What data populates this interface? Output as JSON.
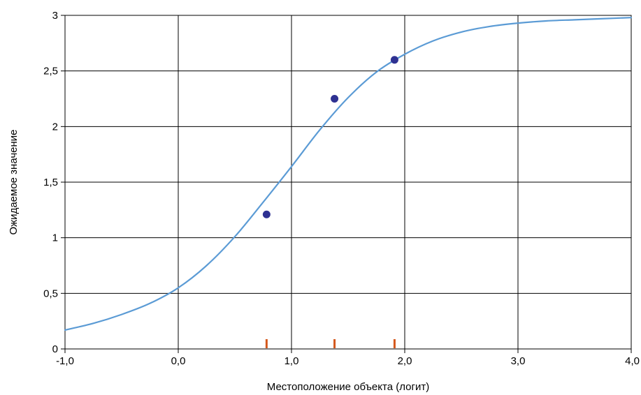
{
  "chart_data": {
    "type": "line",
    "xlabel": "Местоположение объекта (логит)",
    "ylabel": "Ожидаемое значение",
    "xlim": [
      -1.0,
      4.0
    ],
    "ylim": [
      0,
      3
    ],
    "xticks": [
      -1.0,
      0.0,
      1.0,
      2.0,
      3.0,
      4.0
    ],
    "xtick_labels": [
      "-1,0",
      "0,0",
      "1,0",
      "2,0",
      "3,0",
      "4,0"
    ],
    "yticks": [
      0,
      0.5,
      1,
      1.5,
      2,
      2.5,
      3
    ],
    "ytick_labels": [
      "0",
      "0,5",
      "1",
      "1,5",
      "2",
      "2,5",
      "3"
    ],
    "grid": true,
    "series": [
      {
        "kind": "curve",
        "color": "#5b9bd5",
        "x": [
          -1.0,
          -0.75,
          -0.5,
          -0.25,
          0.0,
          0.25,
          0.5,
          0.75,
          1.0,
          1.25,
          1.5,
          1.75,
          2.0,
          2.25,
          2.5,
          2.75,
          3.0,
          3.25,
          3.5,
          3.75,
          4.0
        ],
        "y": [
          0.17,
          0.23,
          0.31,
          0.41,
          0.55,
          0.75,
          1.01,
          1.32,
          1.64,
          1.97,
          2.26,
          2.49,
          2.65,
          2.77,
          2.85,
          2.9,
          2.93,
          2.95,
          2.96,
          2.97,
          2.98
        ]
      },
      {
        "kind": "points",
        "color": "#2e3192",
        "x": [
          0.78,
          1.38,
          1.91
        ],
        "y": [
          1.21,
          2.25,
          2.6
        ]
      },
      {
        "kind": "rug",
        "color": "#d4581c",
        "x": [
          0.78,
          1.38,
          1.91
        ]
      }
    ]
  }
}
